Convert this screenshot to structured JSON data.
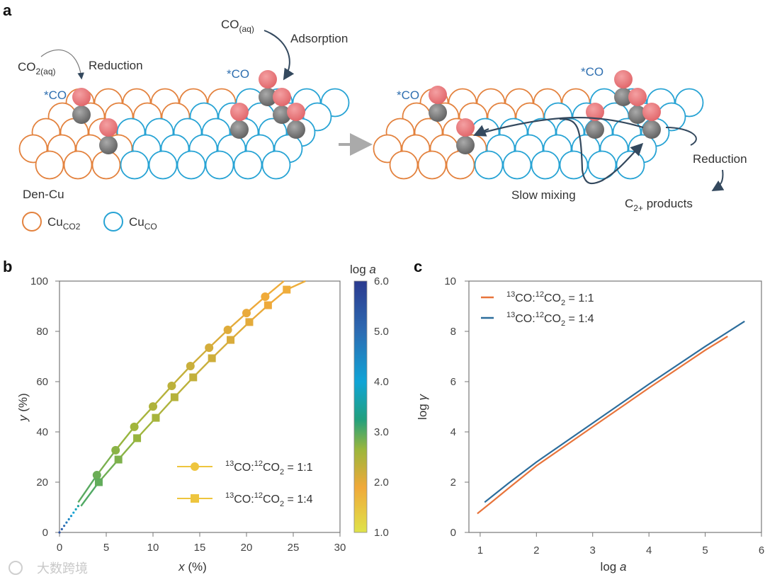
{
  "panel_a": {
    "label": "a",
    "co2aq_main": "CO",
    "co2aq_sub": "2(aq)",
    "reduction_left": "Reduction",
    "coaq_main": "CO",
    "coaq_sub": "(aq)",
    "adsorption": "Adsorption",
    "star_co": "*CO",
    "den_cu": "Den-Cu",
    "legend_cu_co2_main": "Cu",
    "legend_cu_co2_sub": "CO2",
    "legend_cu_co_main": "Cu",
    "legend_cu_co_sub": "CO",
    "slow_mixing": "Slow mixing",
    "reduction_right": "Reduction",
    "c2_main": "C",
    "c2_sub": "2+",
    "c2_rest": " products",
    "colors": {
      "cu_co2": "#e3823e",
      "cu_co": "#27a3d4",
      "oxygen": "#e8767a",
      "carbon": "#7c7c7c",
      "arrow": "#34495e",
      "star_co": "#2f6fb0"
    }
  },
  "legend_text": {
    "sup13": "13",
    "co": "CO:",
    "sup12": "12",
    "co2": "CO",
    "sub2": "2",
    "r11": " = 1:1",
    "r14": " = 1:4"
  },
  "chart_data": [
    {
      "panel": "b",
      "type": "line",
      "xlabel_var": "x",
      "xlabel_unit": " (%)",
      "ylabel_var": "y",
      "ylabel_unit": " (%)",
      "xlim": [
        0,
        30
      ],
      "ylim": [
        0,
        100
      ],
      "xticks": [
        "0",
        "5",
        "10",
        "15",
        "20",
        "25",
        "30"
      ],
      "yticks": [
        "0",
        "20",
        "40",
        "60",
        "80",
        "100"
      ],
      "colorbar": {
        "title_main": "log ",
        "title_var": "a",
        "range": [
          1.0,
          6.0
        ],
        "ticks": [
          "1.0",
          "2.0",
          "3.0",
          "4.0",
          "5.0",
          "6.0"
        ],
        "colors": [
          "#dfe34a",
          "#f0a93a",
          "#7ab648",
          "#22a07e",
          "#10a4d6",
          "#2d6bb2",
          "#2b3a8f"
        ]
      },
      "legend_position": "lower-right",
      "series": [
        {
          "name": "13CO:12CO2 = 1:1",
          "marker": "circle",
          "line_start": [
            2.0,
            12.0
          ],
          "line_end": [
            24.0,
            100
          ],
          "points": [
            [
              4.0,
              22.8
            ],
            [
              6.0,
              32.7
            ],
            [
              8.0,
              42.0
            ],
            [
              10.0,
              50.1
            ],
            [
              12.0,
              58.3
            ],
            [
              14.0,
              66.2
            ],
            [
              16.0,
              73.5
            ],
            [
              18.0,
              80.6
            ],
            [
              20.0,
              87.3
            ],
            [
              22.0,
              93.8
            ]
          ]
        },
        {
          "name": "13CO:12CO2 = 1:4",
          "marker": "square",
          "line_start": [
            2.3,
            10.5
          ],
          "line_end": [
            26.3,
            100
          ],
          "points": [
            [
              4.2,
              20.0
            ],
            [
              6.3,
              29.0
            ],
            [
              8.3,
              37.5
            ],
            [
              10.3,
              45.6
            ],
            [
              12.3,
              53.8
            ],
            [
              14.3,
              61.7
            ],
            [
              16.3,
              69.3
            ],
            [
              18.3,
              76.6
            ],
            [
              20.3,
              83.7
            ],
            [
              22.3,
              90.4
            ],
            [
              24.3,
              96.6
            ]
          ]
        }
      ],
      "dotted_segment": [
        [
          0,
          0
        ],
        [
          2.0,
          10.5
        ]
      ]
    },
    {
      "panel": "c",
      "type": "line",
      "xlabel_main": "log ",
      "xlabel_var": "a",
      "ylabel_main": "log ",
      "ylabel_var": "γ",
      "xlim": [
        0.8,
        6
      ],
      "ylim": [
        0,
        10
      ],
      "xticks": [
        "1",
        "2",
        "3",
        "4",
        "5",
        "6"
      ],
      "yticks": [
        "0",
        "2",
        "4",
        "6",
        "8",
        "10"
      ],
      "legend_position": "top-left",
      "series": [
        {
          "name": "13CO:12CO2 = 1:1",
          "color": "#e8743b",
          "points": [
            [
              0.95,
              0.75
            ],
            [
              1.2,
              1.2
            ],
            [
              1.5,
              1.75
            ],
            [
              2,
              2.65
            ],
            [
              3,
              4.2
            ],
            [
              4,
              5.75
            ],
            [
              5,
              7.25
            ],
            [
              5.4,
              7.8
            ]
          ]
        },
        {
          "name": "13CO:12CO2 = 1:4",
          "color": "#2c6d9c",
          "points": [
            [
              1.08,
              1.2
            ],
            [
              1.5,
              1.95
            ],
            [
              2,
              2.8
            ],
            [
              3,
              4.35
            ],
            [
              4,
              5.9
            ],
            [
              5,
              7.4
            ],
            [
              5.7,
              8.4
            ]
          ]
        }
      ]
    }
  ],
  "watermark": "大数跨境"
}
